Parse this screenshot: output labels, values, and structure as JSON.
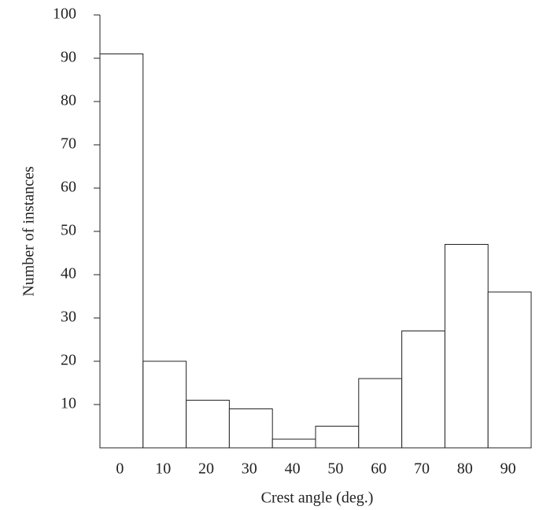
{
  "chart_data": {
    "type": "bar",
    "x_label": "Crest angle (deg.)",
    "y_label": "Number of instances",
    "categories": [
      "0",
      "10",
      "20",
      "30",
      "40",
      "50",
      "60",
      "70",
      "80",
      "90"
    ],
    "values": [
      91,
      20,
      11,
      9,
      2,
      5,
      16,
      27,
      47,
      36
    ],
    "color": "#ffffff",
    "ylim": [
      0,
      100
    ],
    "yticks": [
      10,
      20,
      30,
      40,
      50,
      60,
      70,
      80,
      90,
      100
    ]
  }
}
